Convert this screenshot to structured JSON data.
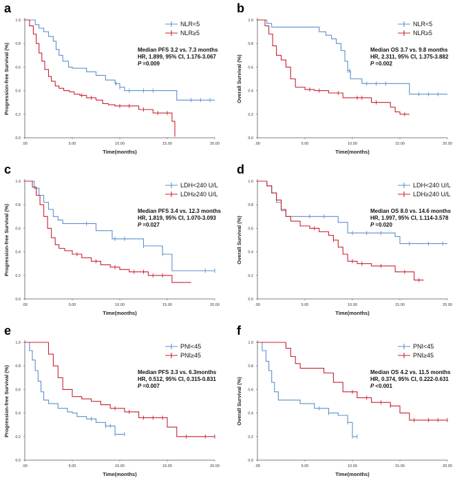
{
  "figure": {
    "description_panels": 6
  },
  "colors": {
    "series1": "#5b8fcb",
    "series2": "#c8202f",
    "axis": "#555555"
  },
  "chart_data": [
    {
      "panel_label": "a",
      "type": "line",
      "step": true,
      "ylabel": "Progression-free Survival (%)",
      "xlabel": "Time(months)",
      "xlim": [
        0,
        20
      ],
      "ylim": [
        0,
        1.0
      ],
      "xticks": [
        ".00",
        "5.00",
        "10.00",
        "15.00",
        "20.00"
      ],
      "yticks": [
        "0.0",
        "0.2",
        "0.4",
        "0.6",
        "0.8",
        "1.0"
      ],
      "annotation": {
        "line1": "Median PFS 3.2 vs. 7.3 months",
        "line2": "HR, 1.899, 95% CI, 1.176-3.067",
        "p_label": "P",
        "p_value": "=0.009"
      },
      "series": [
        {
          "name": "NLR<5",
          "color": "#5b8fcb",
          "x": [
            0,
            1.1,
            1.5,
            2.0,
            2.5,
            3.0,
            3.3,
            3.6,
            4.0,
            4.6,
            5.0,
            5.6,
            6.5,
            7.5,
            8.5,
            9.5,
            10.0,
            10.5,
            13.5,
            16.0,
            20.0
          ],
          "y": [
            1.0,
            0.96,
            0.93,
            0.9,
            0.86,
            0.82,
            0.75,
            0.7,
            0.65,
            0.6,
            0.59,
            0.59,
            0.56,
            0.53,
            0.49,
            0.46,
            0.43,
            0.4,
            0.4,
            0.32,
            0.32
          ],
          "censored": [
            9.6,
            10.0,
            11.0,
            12.5,
            13.5,
            17.5,
            18.5,
            19.5
          ]
        },
        {
          "name": "NLR≥5",
          "color": "#c8202f",
          "x": [
            0,
            0.5,
            0.9,
            1.2,
            1.5,
            1.8,
            2.1,
            2.5,
            2.8,
            3.2,
            3.6,
            4.1,
            4.7,
            5.2,
            5.8,
            6.5,
            7.5,
            8.2,
            8.8,
            9.5,
            12.0,
            13.5,
            14.5,
            15.5,
            15.8
          ],
          "y": [
            1.0,
            0.95,
            0.88,
            0.8,
            0.72,
            0.65,
            0.58,
            0.52,
            0.48,
            0.44,
            0.42,
            0.4,
            0.39,
            0.37,
            0.36,
            0.34,
            0.32,
            0.29,
            0.28,
            0.27,
            0.24,
            0.21,
            0.21,
            0.14,
            0.01
          ],
          "censored": [
            6.0,
            7.0,
            10.0,
            11.0,
            12.5,
            14.0,
            15.0
          ]
        }
      ]
    },
    {
      "panel_label": "b",
      "type": "line",
      "step": true,
      "ylabel": "Overall Survival (%)",
      "xlabel": "Time(months)",
      "xlim": [
        0,
        20
      ],
      "ylim": [
        0,
        1.0
      ],
      "xticks": [
        ".00",
        "5.00",
        "10.00",
        "15.00",
        "20.00"
      ],
      "yticks": [
        "0.0",
        "0.2",
        "0.4",
        "0.6",
        "0.8",
        "1.0"
      ],
      "annotation": {
        "line1": "Median OS 3.7 vs. 9.8 months",
        "line2": "HR, 2.311, 95% CI, 1.375-3.882",
        "p_label": "P",
        "p_value": "=0.002"
      },
      "series": [
        {
          "name": "NLR<5",
          "color": "#5b8fcb",
          "x": [
            0,
            1.0,
            1.5,
            5.0,
            6.5,
            7.2,
            7.8,
            8.3,
            8.8,
            9.2,
            9.5,
            9.8,
            10.0,
            11.0,
            14.5,
            16.0,
            20.0
          ],
          "y": [
            1.0,
            0.97,
            0.94,
            0.94,
            0.9,
            0.87,
            0.84,
            0.8,
            0.74,
            0.65,
            0.57,
            0.5,
            0.5,
            0.46,
            0.46,
            0.37,
            0.37
          ],
          "censored": [
            9.5,
            9.7,
            11.5,
            12.5,
            13.5,
            17.0,
            18.0,
            19.0
          ]
        },
        {
          "name": "NLR≥5",
          "color": "#c8202f",
          "x": [
            0,
            0.8,
            1.2,
            1.6,
            2.0,
            2.5,
            3.0,
            3.5,
            4.0,
            5.0,
            6.0,
            7.5,
            9.0,
            12.0,
            14.0,
            14.5,
            15.0,
            16.0
          ],
          "y": [
            1.0,
            0.95,
            0.88,
            0.78,
            0.7,
            0.66,
            0.6,
            0.5,
            0.43,
            0.41,
            0.4,
            0.38,
            0.34,
            0.3,
            0.26,
            0.22,
            0.2,
            0.2
          ],
          "censored": [
            5.5,
            6.5,
            8.5,
            10.5,
            11.0,
            12.5,
            15.5
          ]
        }
      ]
    },
    {
      "panel_label": "c",
      "type": "line",
      "step": true,
      "ylabel": "Progression-free Survival (%)",
      "xlabel": "Time(months)",
      "xlim": [
        0,
        20
      ],
      "ylim": [
        0,
        1.0
      ],
      "xticks": [
        ".00",
        "5.00",
        "10.00",
        "15.00",
        "20.00"
      ],
      "yticks": [
        "0.0",
        "0.2",
        "0.4",
        "0.6",
        "0.8",
        "1.0"
      ],
      "annotation": {
        "line1": "Median PFS 3.4 vs. 12.3 months",
        "line2": "HR, 1.819, 95% CI, 1.070-3.093",
        "p_label": "P",
        "p_value": "=0.027"
      },
      "series": [
        {
          "name": "LDH<240 U/L",
          "color": "#5b8fcb",
          "x": [
            0,
            1.0,
            1.5,
            2.0,
            2.5,
            3.0,
            3.5,
            4.0,
            7.5,
            9.2,
            12.5,
            14.5,
            15.0,
            15.5,
            20.0
          ],
          "y": [
            1.0,
            0.94,
            0.88,
            0.82,
            0.76,
            0.7,
            0.67,
            0.64,
            0.58,
            0.51,
            0.45,
            0.38,
            0.38,
            0.24,
            0.24
          ],
          "censored": [
            6.5,
            9.5,
            10.5,
            12.5,
            14.5,
            19.0,
            20.0
          ]
        },
        {
          "name": "LDH≥240 U/L",
          "color": "#c8202f",
          "x": [
            0,
            0.8,
            1.2,
            1.6,
            2.0,
            2.4,
            2.8,
            3.2,
            3.6,
            4.2,
            5.0,
            6.0,
            7.0,
            8.0,
            9.0,
            10.0,
            11.0,
            13.0,
            15.5,
            17.5
          ],
          "y": [
            1.0,
            0.95,
            0.88,
            0.8,
            0.7,
            0.6,
            0.52,
            0.46,
            0.43,
            0.41,
            0.38,
            0.35,
            0.32,
            0.29,
            0.27,
            0.25,
            0.23,
            0.2,
            0.14,
            0.14
          ],
          "censored": [
            5.5,
            7.5,
            9.5,
            11.5,
            12.5,
            13.5,
            14.5
          ]
        }
      ]
    },
    {
      "panel_label": "d",
      "type": "line",
      "step": true,
      "ylabel": "Overall Survival (%)",
      "xlabel": "Time(months)",
      "xlim": [
        0,
        20
      ],
      "ylim": [
        0,
        1.0
      ],
      "xticks": [
        ".00",
        "5.00",
        "10.00",
        "15.00",
        "20.00"
      ],
      "yticks": [
        "0.0",
        "0.2",
        "0.4",
        "0.6",
        "0.8",
        "1.0"
      ],
      "annotation": {
        "line1": "Median OS 8.0 vs. 14.6 months",
        "line2": "HR, 1.997, 95% CI, 1.114-3.578",
        "p_label": "P",
        "p_value": "=0.020"
      },
      "series": [
        {
          "name": "LDH<240 U/L",
          "color": "#5b8fcb",
          "x": [
            0,
            1.0,
            1.5,
            2.0,
            2.5,
            3.0,
            7.0,
            8.5,
            9.5,
            13.0,
            14.5,
            15.0,
            20.0
          ],
          "y": [
            1.0,
            0.96,
            0.9,
            0.82,
            0.75,
            0.7,
            0.7,
            0.65,
            0.56,
            0.56,
            0.53,
            0.47,
            0.47
          ],
          "censored": [
            5.5,
            7.0,
            10.0,
            11.5,
            13.0,
            16.0,
            18.0,
            19.5
          ]
        },
        {
          "name": "LDH≥240 U/L",
          "color": "#c8202f",
          "x": [
            0,
            1.0,
            1.5,
            2.0,
            2.5,
            3.0,
            3.5,
            4.5,
            5.5,
            6.5,
            7.5,
            8.0,
            8.5,
            9.0,
            9.5,
            10.5,
            12.0,
            14.5,
            16.5,
            17.5
          ],
          "y": [
            1.0,
            0.96,
            0.9,
            0.84,
            0.76,
            0.7,
            0.66,
            0.62,
            0.6,
            0.57,
            0.54,
            0.5,
            0.44,
            0.38,
            0.32,
            0.3,
            0.28,
            0.23,
            0.16,
            0.16
          ],
          "censored": [
            6.0,
            8.0,
            10.0,
            11.0,
            13.0,
            15.5,
            17.0
          ]
        }
      ]
    },
    {
      "panel_label": "e",
      "type": "line",
      "step": true,
      "ylabel": "Progression-free Survival (%)",
      "xlabel": "Time(months)",
      "xlim": [
        0,
        20
      ],
      "ylim": [
        0,
        1.0
      ],
      "xticks": [
        ".00",
        "5.00",
        "10.00",
        "15.00",
        "20.00"
      ],
      "yticks": [
        "0.0",
        "0.2",
        "0.4",
        "0.6",
        "0.8",
        "1.0"
      ],
      "annotation": {
        "line1": "Median PFS 3.3 vs. 6.3months",
        "line2": "HR, 0.512, 95% CI, 0.315-0.831",
        "p_label": "P",
        "p_value": "=0.007"
      },
      "series": [
        {
          "name": "PNI<45",
          "color": "#5b8fcb",
          "x": [
            0,
            0.5,
            0.8,
            1.1,
            1.4,
            1.7,
            2.0,
            2.5,
            3.5,
            4.5,
            5.0,
            5.5,
            6.5,
            7.5,
            8.5,
            9.5,
            10.5
          ],
          "y": [
            1.0,
            0.93,
            0.85,
            0.76,
            0.67,
            0.58,
            0.51,
            0.48,
            0.44,
            0.41,
            0.4,
            0.37,
            0.35,
            0.32,
            0.29,
            0.22,
            0.22
          ],
          "censored": [
            7.0,
            8.5,
            9.0,
            9.5,
            10.5
          ]
        },
        {
          "name": "PNI≥45",
          "color": "#c8202f",
          "x": [
            0,
            2.0,
            2.5,
            3.0,
            3.5,
            4.0,
            5.0,
            6.0,
            7.0,
            8.0,
            9.0,
            10.5,
            12.0,
            15.0,
            16.0,
            20.0
          ],
          "y": [
            1.0,
            1.0,
            0.9,
            0.8,
            0.7,
            0.6,
            0.54,
            0.52,
            0.5,
            0.47,
            0.44,
            0.41,
            0.36,
            0.28,
            0.2,
            0.2
          ],
          "censored": [
            9.5,
            11.0,
            12.5,
            13.5,
            14.5,
            17.0,
            19.0,
            20.0
          ]
        }
      ]
    },
    {
      "panel_label": "f",
      "type": "line",
      "step": true,
      "ylabel": "Overall Survival (%)",
      "xlabel": "Time(months)",
      "xlim": [
        0,
        20
      ],
      "ylim": [
        0,
        1.0
      ],
      "xticks": [
        ".00",
        "5.00",
        "10.00",
        "15.00",
        "20.00"
      ],
      "yticks": [
        "0.0",
        "0.2",
        "0.4",
        "0.6",
        "0.8",
        "1.0"
      ],
      "annotation": {
        "line1": "Median OS 4.2 vs. 11.5 months",
        "line2": "HR, 0.374, 95% CI, 0.222-0.631",
        "p_label": "P",
        "p_value": "<0.001"
      },
      "series": [
        {
          "name": "PNI<45",
          "color": "#5b8fcb",
          "x": [
            0,
            0.5,
            0.9,
            1.2,
            1.5,
            1.8,
            2.2,
            3.0,
            4.5,
            6.0,
            7.5,
            8.5,
            9.5,
            10.0,
            10.5
          ],
          "y": [
            1.0,
            0.93,
            0.84,
            0.76,
            0.66,
            0.58,
            0.51,
            0.51,
            0.48,
            0.44,
            0.4,
            0.38,
            0.32,
            0.2,
            0.2
          ],
          "censored": [
            6.5,
            7.5,
            9.5,
            10.0,
            10.5
          ]
        },
        {
          "name": "PNI≥45",
          "color": "#c8202f",
          "x": [
            0,
            2.5,
            3.0,
            3.5,
            4.0,
            4.5,
            7.0,
            8.0,
            9.0,
            10.5,
            12.0,
            14.0,
            15.0,
            16.0,
            20.0
          ],
          "y": [
            1.0,
            1.0,
            0.95,
            0.88,
            0.82,
            0.78,
            0.74,
            0.66,
            0.58,
            0.53,
            0.49,
            0.46,
            0.4,
            0.34,
            0.34
          ],
          "censored": [
            10.0,
            11.5,
            13.0,
            14.0,
            16.5,
            18.0,
            19.0,
            20.0
          ]
        }
      ]
    }
  ]
}
